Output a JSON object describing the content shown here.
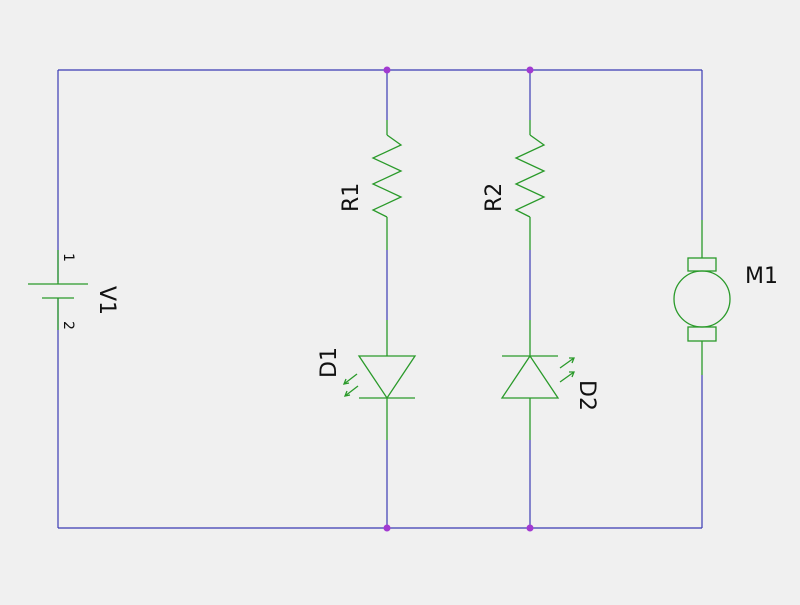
{
  "schematic": {
    "colors": {
      "background": "#f0f0f0",
      "wire": "#3b3bb4",
      "component": "#2a9a2a",
      "junction": "#a23ad1",
      "text": "#111111"
    },
    "components": {
      "v1": {
        "label": "V1",
        "type": "battery",
        "pin_plus": "1",
        "pin_minus": "2"
      },
      "r1": {
        "label": "R1",
        "type": "resistor"
      },
      "r2": {
        "label": "R2",
        "type": "resistor"
      },
      "d1": {
        "label": "D1",
        "type": "led"
      },
      "d2": {
        "label": "D2",
        "type": "led"
      },
      "m1": {
        "label": "M1",
        "type": "motor"
      }
    }
  }
}
